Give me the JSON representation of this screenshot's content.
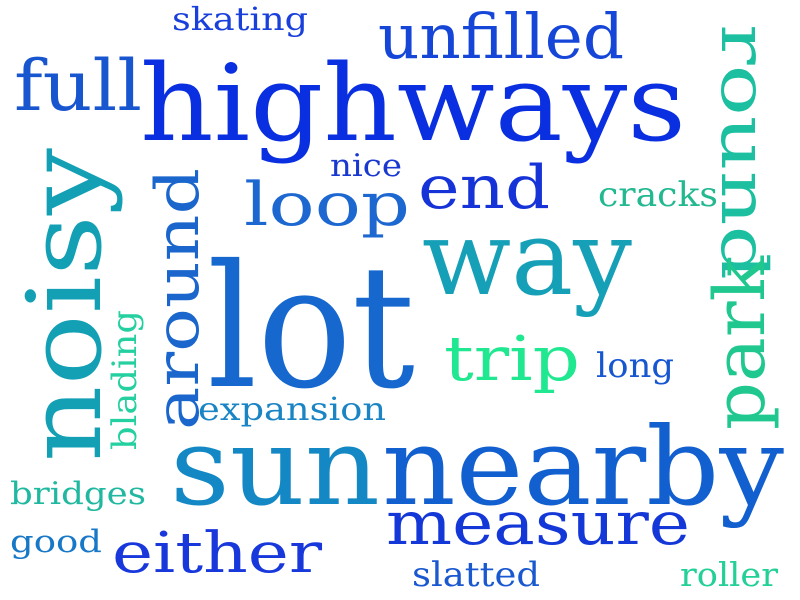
{
  "words": [
    {
      "id": "highways",
      "text": "highways",
      "color": "#0a2fe0"
    },
    {
      "id": "lot",
      "text": "lot",
      "color": "#1668cf"
    },
    {
      "id": "sun",
      "text": "sun",
      "color": "#1488c4"
    },
    {
      "id": "nearby",
      "text": "nearby",
      "color": "#125fcf"
    },
    {
      "id": "noisy",
      "text": "noisy",
      "color": "#14a0b4"
    },
    {
      "id": "way",
      "text": "way",
      "color": "#16a0b8"
    },
    {
      "id": "full",
      "text": "full",
      "color": "#1856d0"
    },
    {
      "id": "unfilled",
      "text": "unfilled",
      "color": "#1646d8"
    },
    {
      "id": "round",
      "text": "round",
      "color": "#1cc0a0"
    },
    {
      "id": "park",
      "text": "park",
      "color": "#20c890"
    },
    {
      "id": "around",
      "text": "around",
      "color": "#1a66cc"
    },
    {
      "id": "measure",
      "text": "measure",
      "color": "#1438d8"
    },
    {
      "id": "either",
      "text": "either",
      "color": "#1838dc"
    },
    {
      "id": "loop",
      "text": "loop",
      "color": "#1d68d0"
    },
    {
      "id": "end",
      "text": "end",
      "color": "#1633d8"
    },
    {
      "id": "trip",
      "text": "trip",
      "color": "#20e890"
    },
    {
      "id": "skating",
      "text": "skating",
      "color": "#1a40dc"
    },
    {
      "id": "nice",
      "text": "nice",
      "color": "#1838d0"
    },
    {
      "id": "cracks",
      "text": "cracks",
      "color": "#22b890"
    },
    {
      "id": "long",
      "text": "long",
      "color": "#1656d0"
    },
    {
      "id": "expansion",
      "text": "expansion",
      "color": "#1a84c4"
    },
    {
      "id": "blading",
      "text": "blading",
      "color": "#24d0a0"
    },
    {
      "id": "bridges",
      "text": "bridges",
      "color": "#20b8a0"
    },
    {
      "id": "good",
      "text": "good",
      "color": "#1878c8"
    },
    {
      "id": "slatted",
      "text": "slatted",
      "color": "#1a58d0"
    },
    {
      "id": "roller",
      "text": "roller",
      "color": "#22d098"
    }
  ]
}
